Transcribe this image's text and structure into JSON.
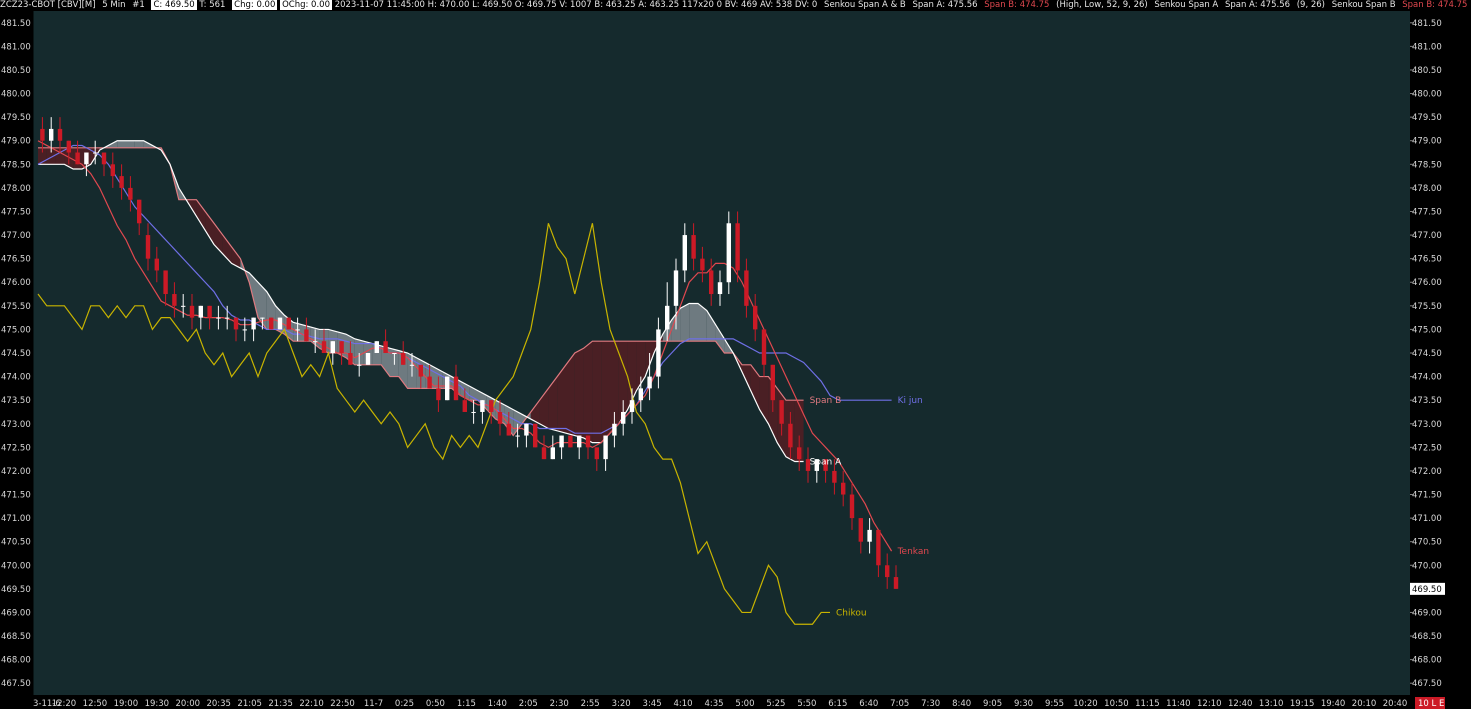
{
  "header": {
    "symbol": "ZCZ23-CBOT [CBV][M]",
    "interval": "5 Min",
    "index": "#1",
    "close": "C: 469.50",
    "ticks": "T: 561",
    "chg": "Chg: 0.00",
    "ochg": "OChg: 0.00",
    "bar_info": "2023-11-07 11:45:00 H: 470.00 L: 469.50 O: 469.75 V: 1007 B: 463.25 A: 463.25 117x20 0 BV: 469 AV: 538 DV: 0",
    "study1_name": "Senkou Span A & B",
    "study1_a": "Span A: 475.56",
    "study1_b": "Span B: 474.75",
    "study1_params": "(High, Low, 52, 9, 26)",
    "study2_name": "Senkou Span A",
    "study2_a": "Span A: 475.56",
    "study2_params": "(9, 26)",
    "study3_name": "Senkou Span B",
    "study3_b": "Span B: 474.75"
  },
  "colors": {
    "background": "#152a2d",
    "up_candle": "#ffffff",
    "down_candle": "#cc1a26",
    "tenkan": "#e0484f",
    "kijun": "#6f6fe6",
    "chikou": "#c8b400",
    "span_a": "#ffffff",
    "span_b": "#e07a80",
    "cloud_bearish": "#4a1f24",
    "cloud_bullish": "#6e7a80"
  },
  "labels": {
    "kijun": "Ki jun",
    "span_b": "Span B",
    "span_a": "Span A",
    "tenkan": "Tenkan",
    "chikou": "Chikou",
    "price_tag": "469.50",
    "bottom_right_tag": "10 L E"
  },
  "chart_data": {
    "type": "candlestick",
    "y_range": [
      467.25,
      481.75
    ],
    "price_ticks": [
      "481.50",
      "481.00",
      "480.50",
      "480.00",
      "479.50",
      "479.00",
      "478.50",
      "478.00",
      "477.50",
      "477.00",
      "476.50",
      "476.00",
      "475.50",
      "475.00",
      "474.50",
      "474.00",
      "473.50",
      "473.00",
      "472.50",
      "472.00",
      "471.50",
      "471.00",
      "470.50",
      "470.00",
      "469.50",
      "469.00",
      "468.50",
      "468.00",
      "467.50"
    ],
    "time_ticks": [
      "3-11-6",
      "12:20",
      "12:50",
      "19:00",
      "19:30",
      "20:00",
      "20:35",
      "21:05",
      "21:35",
      "22:10",
      "22:50",
      "11-7",
      "0:25",
      "0:50",
      "1:15",
      "1:40",
      "2:05",
      "2:30",
      "2:55",
      "3:20",
      "3:45",
      "4:10",
      "4:35",
      "5:00",
      "5:25",
      "5:50",
      "6:15",
      "6:40",
      "7:05",
      "7:30",
      "8:40",
      "9:05",
      "9:30",
      "9:55",
      "10:20",
      "10:50",
      "11:15",
      "11:40",
      "12:10",
      "12:40",
      "13:10",
      "19:15",
      "19:40",
      "20:10",
      "20:40"
    ],
    "last_price": 469.5,
    "candles": [
      {
        "o": 479.25,
        "h": 479.5,
        "l": 478.75,
        "c": 479.0
      },
      {
        "o": 479.0,
        "h": 479.5,
        "l": 478.75,
        "c": 479.25
      },
      {
        "o": 479.25,
        "h": 479.5,
        "l": 478.75,
        "c": 479.0
      },
      {
        "o": 479.0,
        "h": 479.0,
        "l": 478.5,
        "c": 478.75
      },
      {
        "o": 478.75,
        "h": 479.0,
        "l": 478.5,
        "c": 478.5
      },
      {
        "o": 478.5,
        "h": 478.75,
        "l": 478.25,
        "c": 478.75
      },
      {
        "o": 478.75,
        "h": 479.0,
        "l": 478.5,
        "c": 478.75
      },
      {
        "o": 478.75,
        "h": 478.75,
        "l": 478.25,
        "c": 478.5
      },
      {
        "o": 478.5,
        "h": 478.75,
        "l": 478.0,
        "c": 478.25
      },
      {
        "o": 478.25,
        "h": 478.5,
        "l": 477.75,
        "c": 478.0
      },
      {
        "o": 478.0,
        "h": 478.25,
        "l": 477.5,
        "c": 477.75
      },
      {
        "o": 477.75,
        "h": 477.75,
        "l": 477.0,
        "c": 477.25
      },
      {
        "o": 477.0,
        "h": 477.25,
        "l": 476.25,
        "c": 476.5
      },
      {
        "o": 476.5,
        "h": 476.75,
        "l": 476.0,
        "c": 476.25
      },
      {
        "o": 476.25,
        "h": 476.25,
        "l": 475.5,
        "c": 475.75
      },
      {
        "o": 475.75,
        "h": 476.0,
        "l": 475.25,
        "c": 475.5
      },
      {
        "o": 475.5,
        "h": 475.75,
        "l": 475.25,
        "c": 475.5
      },
      {
        "o": 475.5,
        "h": 475.75,
        "l": 475.0,
        "c": 475.25
      },
      {
        "o": 475.25,
        "h": 475.5,
        "l": 475.0,
        "c": 475.5
      },
      {
        "o": 475.5,
        "h": 475.5,
        "l": 475.0,
        "c": 475.25
      },
      {
        "o": 475.25,
        "h": 475.5,
        "l": 475.0,
        "c": 475.25
      },
      {
        "o": 475.25,
        "h": 475.5,
        "l": 475.0,
        "c": 475.25
      },
      {
        "o": 475.25,
        "h": 475.25,
        "l": 474.75,
        "c": 475.0
      },
      {
        "o": 475.0,
        "h": 475.25,
        "l": 474.75,
        "c": 475.0
      },
      {
        "o": 475.0,
        "h": 475.25,
        "l": 474.75,
        "c": 475.25
      },
      {
        "o": 475.25,
        "h": 475.25,
        "l": 475.0,
        "c": 475.25
      },
      {
        "o": 475.25,
        "h": 475.25,
        "l": 475.0,
        "c": 475.0
      },
      {
        "o": 475.0,
        "h": 475.25,
        "l": 475.0,
        "c": 475.25
      },
      {
        "o": 475.25,
        "h": 475.25,
        "l": 475.0,
        "c": 475.0
      },
      {
        "o": 475.0,
        "h": 475.25,
        "l": 474.75,
        "c": 475.0
      },
      {
        "o": 475.0,
        "h": 475.25,
        "l": 474.75,
        "c": 474.75
      },
      {
        "o": 474.75,
        "h": 475.0,
        "l": 474.5,
        "c": 474.75
      },
      {
        "o": 474.75,
        "h": 475.0,
        "l": 474.5,
        "c": 474.5
      },
      {
        "o": 474.5,
        "h": 474.75,
        "l": 474.25,
        "c": 474.75
      },
      {
        "o": 474.75,
        "h": 474.75,
        "l": 474.25,
        "c": 474.5
      },
      {
        "o": 474.5,
        "h": 474.75,
        "l": 474.25,
        "c": 474.25
      },
      {
        "o": 474.25,
        "h": 474.5,
        "l": 474.0,
        "c": 474.25
      },
      {
        "o": 474.25,
        "h": 474.5,
        "l": 474.25,
        "c": 474.5
      },
      {
        "o": 474.5,
        "h": 474.75,
        "l": 474.5,
        "c": 474.75
      },
      {
        "o": 474.75,
        "h": 475.0,
        "l": 474.5,
        "c": 474.5
      },
      {
        "o": 474.5,
        "h": 474.5,
        "l": 474.25,
        "c": 474.5
      },
      {
        "o": 474.5,
        "h": 474.75,
        "l": 474.25,
        "c": 474.25
      },
      {
        "o": 474.25,
        "h": 474.5,
        "l": 474.0,
        "c": 474.25
      },
      {
        "o": 474.25,
        "h": 474.25,
        "l": 473.75,
        "c": 474.0
      },
      {
        "o": 474.0,
        "h": 474.25,
        "l": 473.75,
        "c": 473.75
      },
      {
        "o": 473.75,
        "h": 474.0,
        "l": 473.25,
        "c": 473.5
      },
      {
        "o": 473.5,
        "h": 474.0,
        "l": 473.5,
        "c": 474.0
      },
      {
        "o": 474.0,
        "h": 474.25,
        "l": 473.5,
        "c": 473.5
      },
      {
        "o": 473.5,
        "h": 473.75,
        "l": 473.25,
        "c": 473.25
      },
      {
        "o": 473.25,
        "h": 473.5,
        "l": 473.0,
        "c": 473.25
      },
      {
        "o": 473.25,
        "h": 473.5,
        "l": 473.0,
        "c": 473.5
      },
      {
        "o": 473.5,
        "h": 473.5,
        "l": 473.0,
        "c": 473.25
      },
      {
        "o": 473.25,
        "h": 473.5,
        "l": 472.75,
        "c": 473.0
      },
      {
        "o": 473.0,
        "h": 473.25,
        "l": 472.75,
        "c": 472.75
      },
      {
        "o": 472.75,
        "h": 473.0,
        "l": 472.5,
        "c": 472.75
      },
      {
        "o": 472.75,
        "h": 473.0,
        "l": 472.5,
        "c": 473.0
      },
      {
        "o": 473.0,
        "h": 473.0,
        "l": 472.5,
        "c": 472.5
      },
      {
        "o": 472.5,
        "h": 472.75,
        "l": 472.25,
        "c": 472.25
      },
      {
        "o": 472.25,
        "h": 472.75,
        "l": 472.25,
        "c": 472.5
      },
      {
        "o": 472.5,
        "h": 472.75,
        "l": 472.25,
        "c": 472.75
      },
      {
        "o": 472.75,
        "h": 472.75,
        "l": 472.5,
        "c": 472.5
      },
      {
        "o": 472.5,
        "h": 472.75,
        "l": 472.25,
        "c": 472.75
      },
      {
        "o": 472.75,
        "h": 472.75,
        "l": 472.25,
        "c": 472.5
      },
      {
        "o": 472.5,
        "h": 472.5,
        "l": 472.0,
        "c": 472.25
      },
      {
        "o": 472.25,
        "h": 472.75,
        "l": 472.0,
        "c": 472.75
      },
      {
        "o": 472.75,
        "h": 473.25,
        "l": 472.5,
        "c": 473.0
      },
      {
        "o": 473.0,
        "h": 473.5,
        "l": 472.75,
        "c": 473.25
      },
      {
        "o": 473.25,
        "h": 473.75,
        "l": 473.0,
        "c": 473.5
      },
      {
        "o": 473.5,
        "h": 474.0,
        "l": 473.25,
        "c": 473.75
      },
      {
        "o": 473.75,
        "h": 474.5,
        "l": 473.5,
        "c": 474.0
      },
      {
        "o": 474.0,
        "h": 475.25,
        "l": 473.75,
        "c": 475.0
      },
      {
        "o": 475.0,
        "h": 476.0,
        "l": 474.75,
        "c": 475.5
      },
      {
        "o": 475.5,
        "h": 476.5,
        "l": 475.0,
        "c": 476.25
      },
      {
        "o": 476.25,
        "h": 477.25,
        "l": 476.0,
        "c": 477.0
      },
      {
        "o": 477.0,
        "h": 477.25,
        "l": 476.25,
        "c": 476.5
      },
      {
        "o": 476.5,
        "h": 476.75,
        "l": 476.0,
        "c": 476.25
      },
      {
        "o": 476.25,
        "h": 476.5,
        "l": 475.5,
        "c": 475.75
      },
      {
        "o": 475.75,
        "h": 476.25,
        "l": 475.5,
        "c": 476.0
      },
      {
        "o": 476.0,
        "h": 477.5,
        "l": 475.75,
        "c": 477.25
      },
      {
        "o": 477.25,
        "h": 477.5,
        "l": 476.0,
        "c": 476.25
      },
      {
        "o": 476.25,
        "h": 476.5,
        "l": 475.25,
        "c": 475.5
      },
      {
        "o": 475.5,
        "h": 475.75,
        "l": 474.75,
        "c": 475.0
      },
      {
        "o": 475.0,
        "h": 475.0,
        "l": 474.0,
        "c": 474.25
      },
      {
        "o": 474.25,
        "h": 474.25,
        "l": 473.25,
        "c": 473.5
      },
      {
        "o": 473.5,
        "h": 473.5,
        "l": 472.75,
        "c": 473.0
      },
      {
        "o": 473.0,
        "h": 473.25,
        "l": 472.25,
        "c": 472.5
      },
      {
        "o": 472.5,
        "h": 472.75,
        "l": 472.0,
        "c": 472.25
      },
      {
        "o": 472.25,
        "h": 472.5,
        "l": 471.75,
        "c": 472.0
      },
      {
        "o": 472.0,
        "h": 472.25,
        "l": 471.75,
        "c": 472.25
      },
      {
        "o": 472.25,
        "h": 472.25,
        "l": 471.75,
        "c": 472.0
      },
      {
        "o": 472.0,
        "h": 472.25,
        "l": 471.5,
        "c": 471.75
      },
      {
        "o": 471.75,
        "h": 472.0,
        "l": 471.25,
        "c": 471.5
      },
      {
        "o": 471.5,
        "h": 471.75,
        "l": 470.75,
        "c": 471.0
      },
      {
        "o": 471.0,
        "h": 471.0,
        "l": 470.25,
        "c": 470.5
      },
      {
        "o": 470.5,
        "h": 471.0,
        "l": 470.25,
        "c": 470.75
      },
      {
        "o": 470.75,
        "h": 470.75,
        "l": 469.75,
        "c": 470.0
      },
      {
        "o": 470.0,
        "h": 470.25,
        "l": 469.5,
        "c": 469.75
      },
      {
        "o": 469.75,
        "h": 470.0,
        "l": 469.5,
        "c": 469.5
      }
    ],
    "tenkan": [
      479.0,
      478.9,
      478.8,
      478.7,
      478.6,
      478.5,
      478.3,
      478.0,
      477.6,
      477.2,
      476.9,
      476.5,
      476.2,
      475.9,
      475.6,
      475.5,
      475.4,
      475.3,
      475.3,
      475.25,
      475.25,
      475.25,
      475.2,
      475.1,
      475.1,
      475.15,
      475.2,
      475.2,
      475.1,
      475.0,
      474.9,
      474.8,
      474.7,
      474.6,
      474.5,
      474.5,
      474.4,
      474.5,
      474.6,
      474.6,
      474.5,
      474.5,
      474.4,
      474.2,
      474.0,
      473.8,
      473.8,
      473.8,
      473.6,
      473.5,
      473.4,
      473.4,
      473.3,
      473.1,
      472.9,
      472.9,
      472.8,
      472.6,
      472.5,
      472.6,
      472.6,
      472.6,
      472.6,
      472.5,
      472.6,
      472.8,
      473.0,
      473.2,
      473.4,
      473.6,
      474.0,
      474.5,
      475.0,
      475.5,
      476.0,
      476.2,
      476.2,
      476.4,
      476.4,
      476.3,
      476.0,
      475.6,
      475.2,
      474.8,
      474.4,
      474.0,
      473.6,
      473.2,
      472.8,
      472.6,
      472.4,
      472.2,
      471.9,
      471.6,
      471.3,
      470.9,
      470.6,
      470.3
    ],
    "kijun": [
      478.5,
      478.6,
      478.7,
      478.8,
      478.9,
      478.9,
      478.8,
      478.7,
      478.5,
      478.2,
      477.9,
      477.6,
      477.4,
      477.2,
      477.0,
      476.8,
      476.6,
      476.4,
      476.2,
      476.0,
      475.8,
      475.5,
      475.3,
      475.2,
      475.2,
      475.1,
      475.0,
      475.0,
      475.0,
      474.9,
      474.9,
      474.85,
      474.8,
      474.8,
      474.8,
      474.75,
      474.7,
      474.7,
      474.7,
      474.6,
      474.5,
      474.5,
      474.4,
      474.3,
      474.2,
      474.1,
      474.0,
      473.9,
      473.8,
      473.6,
      473.5,
      473.4,
      473.3,
      473.2,
      473.1,
      473.0,
      473.0,
      472.9,
      472.9,
      472.9,
      472.9,
      472.8,
      472.8,
      472.8,
      472.8,
      472.9,
      473.0,
      473.2,
      473.4,
      473.7,
      474.0,
      474.3,
      474.5,
      474.7,
      474.8,
      474.8,
      474.8,
      474.8,
      474.8,
      474.8,
      474.7,
      474.6,
      474.5,
      474.5,
      474.5,
      474.5,
      474.4,
      474.3,
      474.1,
      473.9,
      473.6,
      473.5,
      473.5,
      473.5,
      473.5,
      473.5,
      473.5,
      473.5
    ],
    "chikou": [
      475.75,
      475.5,
      475.5,
      475.5,
      475.25,
      475.0,
      475.5,
      475.5,
      475.25,
      475.5,
      475.25,
      475.5,
      475.5,
      475.0,
      475.25,
      475.25,
      475.0,
      474.75,
      475.0,
      474.5,
      474.25,
      474.5,
      474.0,
      474.25,
      474.5,
      474.0,
      474.5,
      474.75,
      475.0,
      474.5,
      474.0,
      474.25,
      474.0,
      474.5,
      473.75,
      473.5,
      473.25,
      473.5,
      473.25,
      473.0,
      473.25,
      473.0,
      472.5,
      472.75,
      473.0,
      472.5,
      472.25,
      472.75,
      472.5,
      472.75,
      472.5,
      473.0,
      473.5,
      473.75,
      474.0,
      474.5,
      475.0,
      476.0,
      477.25,
      476.75,
      476.5,
      475.75,
      476.5,
      477.25,
      476.0,
      475.0,
      474.5,
      474.0,
      473.25,
      473.0,
      472.5,
      472.25,
      472.25,
      471.75,
      471.0,
      470.25,
      470.5,
      470.0,
      469.5,
      469.25,
      469.0,
      469.0,
      469.5,
      470.0,
      469.75,
      469.0,
      468.75,
      468.75,
      468.75,
      469.0,
      469.0
    ],
    "span_a": [
      478.5,
      478.5,
      478.5,
      478.5,
      478.4,
      478.4,
      478.5,
      478.8,
      478.9,
      479.0,
      479.0,
      479.0,
      479.0,
      478.9,
      478.8,
      478.5,
      478.0,
      477.7,
      477.4,
      477.1,
      476.8,
      476.6,
      476.4,
      476.3,
      476.2,
      476.0,
      475.8,
      475.5,
      475.3,
      475.15,
      475.1,
      475.05,
      475.0,
      475.0,
      474.95,
      474.9,
      474.8,
      474.75,
      474.7,
      474.65,
      474.6,
      474.55,
      474.5,
      474.4,
      474.3,
      474.2,
      474.1,
      474.0,
      473.9,
      473.8,
      473.7,
      473.6,
      473.5,
      473.4,
      473.3,
      473.2,
      473.1,
      473.0,
      472.9,
      472.85,
      472.8,
      472.75,
      472.7,
      472.6,
      472.6,
      472.8,
      473.0,
      473.3,
      473.7,
      474.0,
      474.5,
      474.9,
      475.2,
      475.45,
      475.55,
      475.55,
      475.4,
      475.1,
      474.8,
      474.5,
      474.1,
      473.7,
      473.3,
      473.0,
      472.6,
      472.3,
      472.2,
      472.2
    ],
    "span_b": [
      478.85,
      478.85,
      478.85,
      478.85,
      478.85,
      478.85,
      478.85,
      478.85,
      478.85,
      478.85,
      478.85,
      478.85,
      478.85,
      478.85,
      478.85,
      478.5,
      477.75,
      477.75,
      477.75,
      477.5,
      477.25,
      477.0,
      476.75,
      476.5,
      476.0,
      475.25,
      475.0,
      475.0,
      474.9,
      474.75,
      474.75,
      474.75,
      474.6,
      474.5,
      474.5,
      474.4,
      474.25,
      474.25,
      474.25,
      474.25,
      474.0,
      474.0,
      473.75,
      473.75,
      473.75,
      473.75,
      473.75,
      473.75,
      473.6,
      473.5,
      473.5,
      473.3,
      473.1,
      473.0,
      472.75,
      473.0,
      473.25,
      473.5,
      473.75,
      474.0,
      474.25,
      474.5,
      474.6,
      474.75,
      474.75,
      474.75,
      474.75,
      474.75,
      474.75,
      474.75,
      474.75,
      474.75,
      474.75,
      474.75,
      474.75,
      474.75,
      474.75,
      474.75,
      474.5,
      474.5,
      474.25,
      474.25,
      474.0,
      474.0,
      473.75,
      473.5,
      473.5,
      473.5
    ]
  }
}
